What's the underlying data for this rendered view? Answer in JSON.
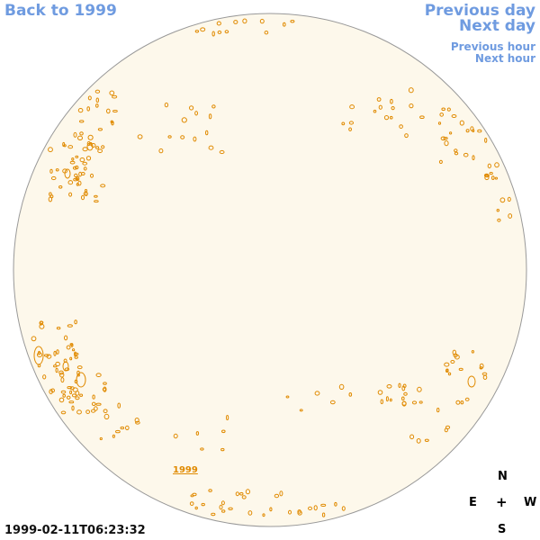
{
  "nav": {
    "back_label": "Back to 1999",
    "prev_day_label": "Previous day",
    "next_day_label": "Next day",
    "prev_hour_label": "Previous hour",
    "next_hour_label": "Next hour"
  },
  "disk": {
    "year_link_label": "1999",
    "fill_color": "#fdf8eb",
    "outline_color": "#999999",
    "feature_color": "#e08a00"
  },
  "timestamp": "1999-02-11T06:23:32",
  "compass": {
    "north": "N",
    "east": "E",
    "center": "+",
    "west": "W",
    "south": "S"
  }
}
